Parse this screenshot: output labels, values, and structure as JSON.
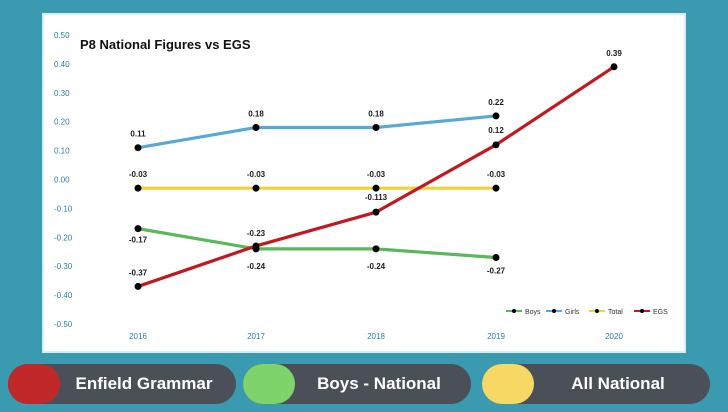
{
  "chart_data": {
    "type": "line",
    "title": "P8 National Figures vs EGS",
    "x": [
      "2016",
      "2017",
      "2018",
      "2019",
      "2020"
    ],
    "ylim": [
      -0.5,
      0.5
    ],
    "yticks": [
      "0.50",
      "0.40",
      "0.30",
      "0.20",
      "0.10",
      "0.00",
      "-0.10",
      "-0.20",
      "-0.30",
      "-0.40",
      "-0.50"
    ],
    "legend_position": "bottom-right",
    "series": [
      {
        "name": "Boys",
        "color": "#5bb75b",
        "values": [
          -0.17,
          -0.24,
          -0.24,
          -0.27,
          null
        ],
        "labels": [
          "-0.17",
          "-0.24",
          "-0.24",
          "-0.27",
          ""
        ]
      },
      {
        "name": "Girls",
        "color": "#5aa8d8",
        "values": [
          0.11,
          0.18,
          0.18,
          0.22,
          null
        ],
        "labels": [
          "0.11",
          "0.18",
          "0.18",
          "0.22",
          ""
        ]
      },
      {
        "name": "Total",
        "color": "#f2d23c",
        "values": [
          -0.03,
          -0.03,
          -0.03,
          -0.03,
          null
        ],
        "labels": [
          "-0.03",
          "-0.03",
          "-0.03",
          "-0.03",
          ""
        ]
      },
      {
        "name": "EGS",
        "color": "#c0191f",
        "values": [
          -0.37,
          -0.23,
          -0.113,
          0.12,
          0.39
        ],
        "labels": [
          "-0.37",
          "-0.23",
          "-0.113",
          "0.12",
          "0.39"
        ]
      }
    ]
  },
  "legend_pills": [
    {
      "label": "Enfield Grammar",
      "color": "#c0282a"
    },
    {
      "label": "Boys - National",
      "color": "#7ed36a"
    },
    {
      "label": "All National",
      "color": "#f7d864"
    }
  ]
}
